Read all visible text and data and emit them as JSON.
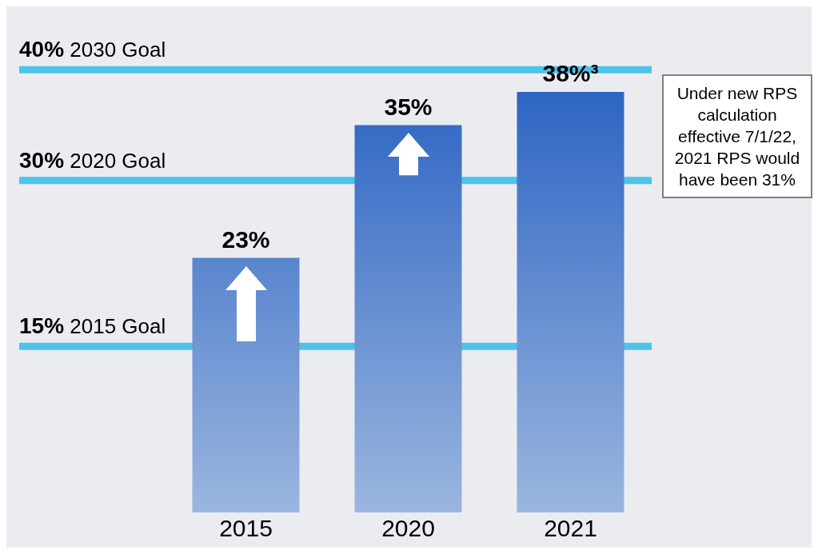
{
  "chart_data": {
    "type": "bar",
    "categories": [
      "2015",
      "2020",
      "2021"
    ],
    "values": [
      23,
      35,
      38
    ],
    "value_labels": [
      "23%",
      "35%",
      "38%³"
    ],
    "color": "#1a56be",
    "relative": false,
    "ref_lines": [
      {
        "axis": "y",
        "value": 15,
        "label": "15% 2015 Goal",
        "color": "#4dc3ea"
      },
      {
        "axis": "y",
        "value": 30,
        "label": "30% 2020 Goal",
        "color": "#4dc3ea"
      },
      {
        "axis": "y",
        "value": 40,
        "label": "40% 2030 Goal",
        "color": "#4dc3ea"
      }
    ],
    "annotations": [
      "Under new RPS calculation effective 7/1/22, 2021 RPS would have been 31%"
    ],
    "grid": false,
    "legend": false
  }
}
